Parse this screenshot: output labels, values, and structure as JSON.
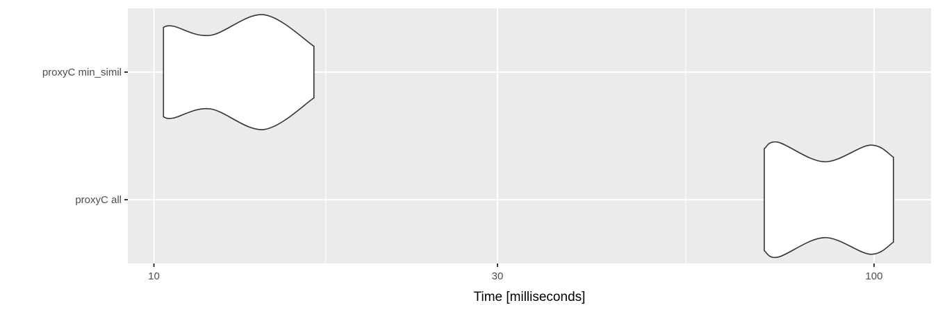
{
  "chart_data": {
    "type": "violin",
    "title": "",
    "xlabel": "Time [milliseconds]",
    "ylabel": "",
    "x_scale": "log10",
    "xlim": [
      9.2,
      120
    ],
    "x_ticks": [
      10,
      30,
      100
    ],
    "x_tick_labels": [
      "10",
      "30",
      "100"
    ],
    "grid": true,
    "categories": [
      "proxyC min_simil",
      "proxyC all"
    ],
    "series": [
      {
        "category": "proxyC min_simil",
        "density_profile": [
          [
            10.31,
            0.78
          ],
          [
            10.64,
            0.8
          ],
          [
            11.97,
            0.64
          ],
          [
            14.2,
            1.0
          ],
          [
            16.68,
            0.45
          ]
        ]
      },
      {
        "category": "proxyC all",
        "density_profile": [
          [
            70.4,
            0.89
          ],
          [
            73.6,
            1.0
          ],
          [
            85.3,
            0.66
          ],
          [
            98.8,
            0.95
          ],
          [
            106.4,
            0.74
          ]
        ]
      }
    ],
    "colors": {
      "panel": "#EBEBEB",
      "grid": "#FFFFFF",
      "fill": "#FFFFFF",
      "outline": "#333333",
      "text": "#4D4D4D"
    }
  }
}
